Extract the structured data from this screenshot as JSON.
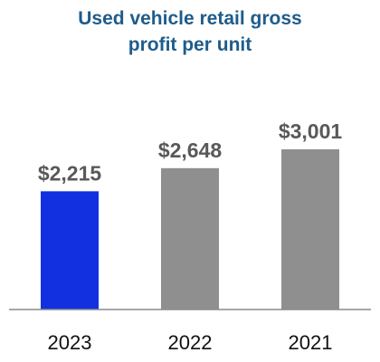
{
  "chart_data": {
    "type": "bar",
    "title_lines": [
      "Used vehicle retail gross",
      "profit per unit"
    ],
    "categories": [
      "2023",
      "2022",
      "2021"
    ],
    "values": [
      2215,
      2648,
      3001
    ],
    "labels": [
      "$2,215",
      "$2,648",
      "$3,001"
    ],
    "bar_colors": [
      "#1230e0",
      "#8f8f8f",
      "#8f8f8f"
    ],
    "axis_color": "#8a8a8a",
    "ylim": [
      0,
      3001
    ],
    "grid": false,
    "legend": "none"
  }
}
